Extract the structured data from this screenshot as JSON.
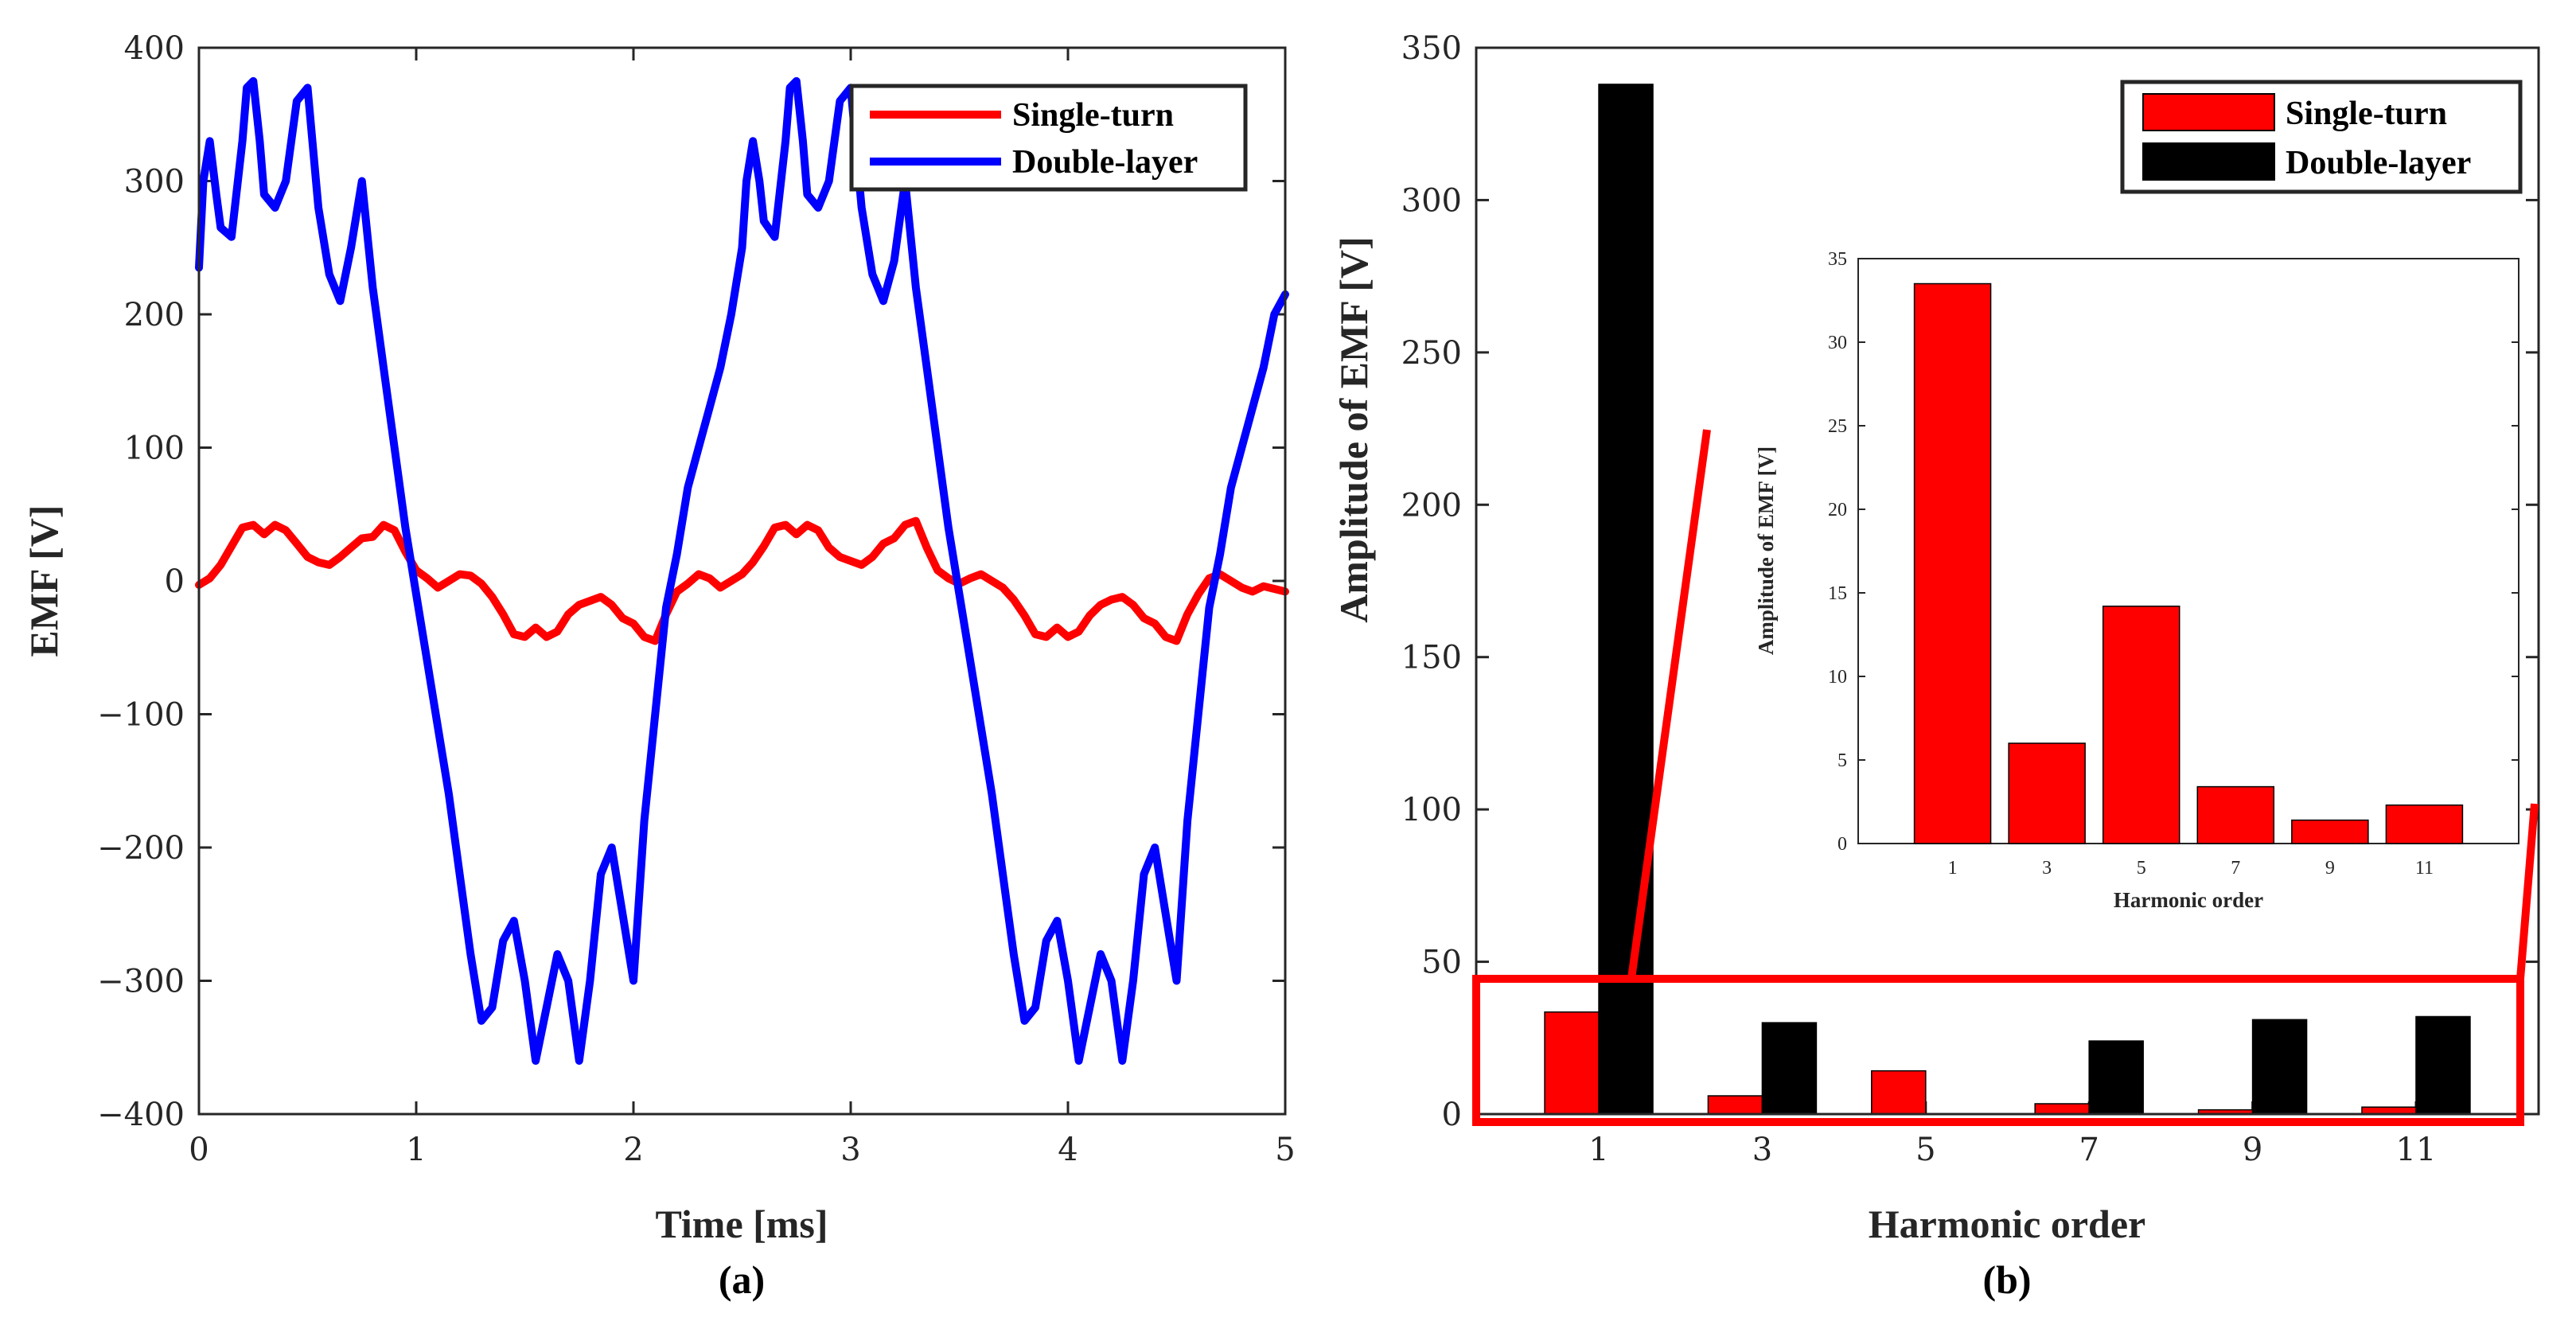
{
  "chart_data": [
    {
      "type": "line",
      "caption": "(a)",
      "xlabel": "Time [ms]",
      "ylabel": "EMF [V]",
      "xlim": [
        0,
        5
      ],
      "ylim": [
        -400,
        400
      ],
      "xticks": [
        0,
        1,
        2,
        3,
        4,
        5
      ],
      "xtick_labels": [
        "0",
        "1",
        "2",
        "3",
        "4",
        "5"
      ],
      "yticks": [
        -400,
        -300,
        -200,
        -100,
        0,
        100,
        200,
        300,
        400
      ],
      "ytick_labels": [
        "−400",
        "−300",
        "−200",
        "−100",
        "0",
        "100",
        "200",
        "300",
        "400"
      ],
      "legend_position": "top-right",
      "series": [
        {
          "name": "Single-turn",
          "color": "#ff0000",
          "x": [
            0,
            0.05,
            0.1,
            0.15,
            0.2,
            0.25,
            0.3,
            0.35,
            0.4,
            0.45,
            0.5,
            0.55,
            0.6,
            0.65,
            0.7,
            0.75,
            0.8,
            0.85,
            0.9,
            0.95,
            1.0,
            1.05,
            1.1,
            1.15,
            1.2,
            1.25,
            1.3,
            1.35,
            1.4,
            1.45,
            1.5,
            1.55,
            1.6,
            1.65,
            1.7,
            1.75,
            1.8,
            1.85,
            1.9,
            1.95,
            2.0,
            2.05,
            2.1,
            2.15,
            2.2,
            2.25,
            2.3,
            2.35,
            2.4,
            2.45,
            2.5,
            2.55,
            2.6,
            2.65,
            2.7,
            2.75,
            2.8,
            2.85,
            2.9,
            2.95,
            3.0,
            3.05,
            3.1,
            3.15,
            3.2,
            3.25,
            3.3,
            3.35,
            3.4,
            3.45,
            3.5,
            3.55,
            3.6,
            3.65,
            3.7,
            3.75,
            3.8,
            3.85,
            3.9,
            3.95,
            4.0,
            4.05,
            4.1,
            4.15,
            4.2,
            4.25,
            4.3,
            4.35,
            4.4,
            4.45,
            4.5,
            4.55,
            4.6,
            4.65,
            4.7,
            4.75,
            4.8,
            4.85,
            4.9,
            4.95,
            5.0
          ],
          "y": [
            -3,
            2,
            12,
            26,
            40,
            42,
            35,
            42,
            38,
            28,
            18,
            14,
            12,
            18,
            25,
            32,
            33,
            42,
            38,
            22,
            8,
            2,
            -5,
            0,
            5,
            4,
            -2,
            -12,
            -25,
            -40,
            -42,
            -35,
            -42,
            -38,
            -25,
            -18,
            -15,
            -12,
            -18,
            -28,
            -32,
            -42,
            -45,
            -25,
            -8,
            -2,
            5,
            2,
            -5,
            0,
            5,
            14,
            26,
            40,
            42,
            35,
            42,
            38,
            25,
            18,
            15,
            12,
            18,
            28,
            32,
            42,
            45,
            25,
            8,
            2,
            -2,
            2,
            5,
            0,
            -5,
            -14,
            -26,
            -40,
            -42,
            -35,
            -42,
            -38,
            -26,
            -18,
            -14,
            -12,
            -18,
            -28,
            -32,
            -42,
            -45,
            -25,
            -10,
            2,
            5,
            0,
            -5,
            -8,
            -4,
            -6,
            -8
          ]
        },
        {
          "name": "Double-layer",
          "color": "#0000ff",
          "x": [
            0,
            0.02,
            0.05,
            0.08,
            0.1,
            0.15,
            0.2,
            0.22,
            0.25,
            0.28,
            0.3,
            0.35,
            0.4,
            0.45,
            0.5,
            0.55,
            0.6,
            0.65,
            0.7,
            0.75,
            0.8,
            0.85,
            0.9,
            0.95,
            1.0,
            1.05,
            1.1,
            1.15,
            1.2,
            1.25,
            1.3,
            1.35,
            1.4,
            1.45,
            1.5,
            1.55,
            1.6,
            1.65,
            1.7,
            1.75,
            1.8,
            1.85,
            1.9,
            1.95,
            2.0,
            2.05,
            2.1,
            2.15,
            2.2,
            2.25,
            2.3,
            2.35,
            2.4,
            2.45,
            2.5,
            2.52,
            2.55,
            2.58,
            2.6,
            2.65,
            2.7,
            2.72,
            2.75,
            2.78,
            2.8,
            2.85,
            2.9,
            2.95,
            3.0,
            3.05,
            3.1,
            3.15,
            3.2,
            3.25,
            3.3,
            3.35,
            3.4,
            3.45,
            3.5,
            3.55,
            3.6,
            3.65,
            3.7,
            3.75,
            3.8,
            3.85,
            3.9,
            3.95,
            4.0,
            4.05,
            4.1,
            4.15,
            4.2,
            4.25,
            4.3,
            4.35,
            4.4,
            4.45,
            4.5,
            4.55,
            4.6,
            4.65,
            4.7,
            4.75,
            4.8,
            4.85,
            4.9,
            4.95,
            5.0
          ],
          "y": [
            235,
            300,
            330,
            290,
            265,
            258,
            330,
            370,
            375,
            330,
            290,
            280,
            300,
            360,
            370,
            280,
            230,
            210,
            250,
            300,
            220,
            160,
            100,
            40,
            -10,
            -60,
            -110,
            -160,
            -220,
            -280,
            -330,
            -320,
            -270,
            -255,
            -300,
            -360,
            -320,
            -280,
            -300,
            -360,
            -300,
            -220,
            -200,
            -250,
            -300,
            -180,
            -100,
            -20,
            20,
            70,
            100,
            130,
            160,
            200,
            250,
            300,
            330,
            300,
            270,
            258,
            330,
            370,
            375,
            330,
            290,
            280,
            300,
            360,
            370,
            280,
            230,
            210,
            240,
            300,
            220,
            160,
            100,
            40,
            -10,
            -60,
            -110,
            -160,
            -220,
            -280,
            -330,
            -320,
            -270,
            -255,
            -300,
            -360,
            -320,
            -280,
            -300,
            -360,
            -300,
            -220,
            -200,
            -250,
            -300,
            -180,
            -100,
            -20,
            20,
            70,
            100,
            130,
            160,
            200,
            215
          ]
        }
      ]
    },
    {
      "type": "bar",
      "caption": "(b)",
      "xlabel": "Harmonic order",
      "ylabel": "Amplitude of EMF [V]",
      "categories": [
        "1",
        "3",
        "5",
        "7",
        "9",
        "11"
      ],
      "ylim": [
        0,
        350
      ],
      "yticks": [
        0,
        50,
        100,
        150,
        200,
        250,
        300,
        350
      ],
      "ytick_labels": [
        "0",
        "50",
        "100",
        "150",
        "200",
        "250",
        "300",
        "350"
      ],
      "legend_position": "top-right",
      "series": [
        {
          "name": "Single-turn",
          "color": "#ff0000",
          "values": [
            33.5,
            6.0,
            14.2,
            3.4,
            1.4,
            2.3
          ]
        },
        {
          "name": "Double-layer",
          "color": "#000000",
          "values": [
            338,
            30,
            0,
            24,
            31,
            32
          ]
        }
      ],
      "inset": {
        "type": "bar",
        "xlabel": "Harmonic order",
        "ylabel": "Amplitude of EMF [V]",
        "categories": [
          "1",
          "3",
          "5",
          "7",
          "9",
          "11"
        ],
        "ylim": [
          0,
          35
        ],
        "yticks": [
          0,
          5,
          10,
          15,
          20,
          25,
          30,
          35
        ],
        "ytick_labels": [
          "0",
          "5",
          "10",
          "15",
          "20",
          "25",
          "30",
          "35"
        ],
        "series": [
          {
            "name": "Single-turn",
            "color": "#ff0000",
            "values": [
              33.5,
              6.0,
              14.2,
              3.4,
              1.4,
              2.3
            ]
          }
        ]
      },
      "zoom_highlight_color": "#ff0000"
    }
  ]
}
